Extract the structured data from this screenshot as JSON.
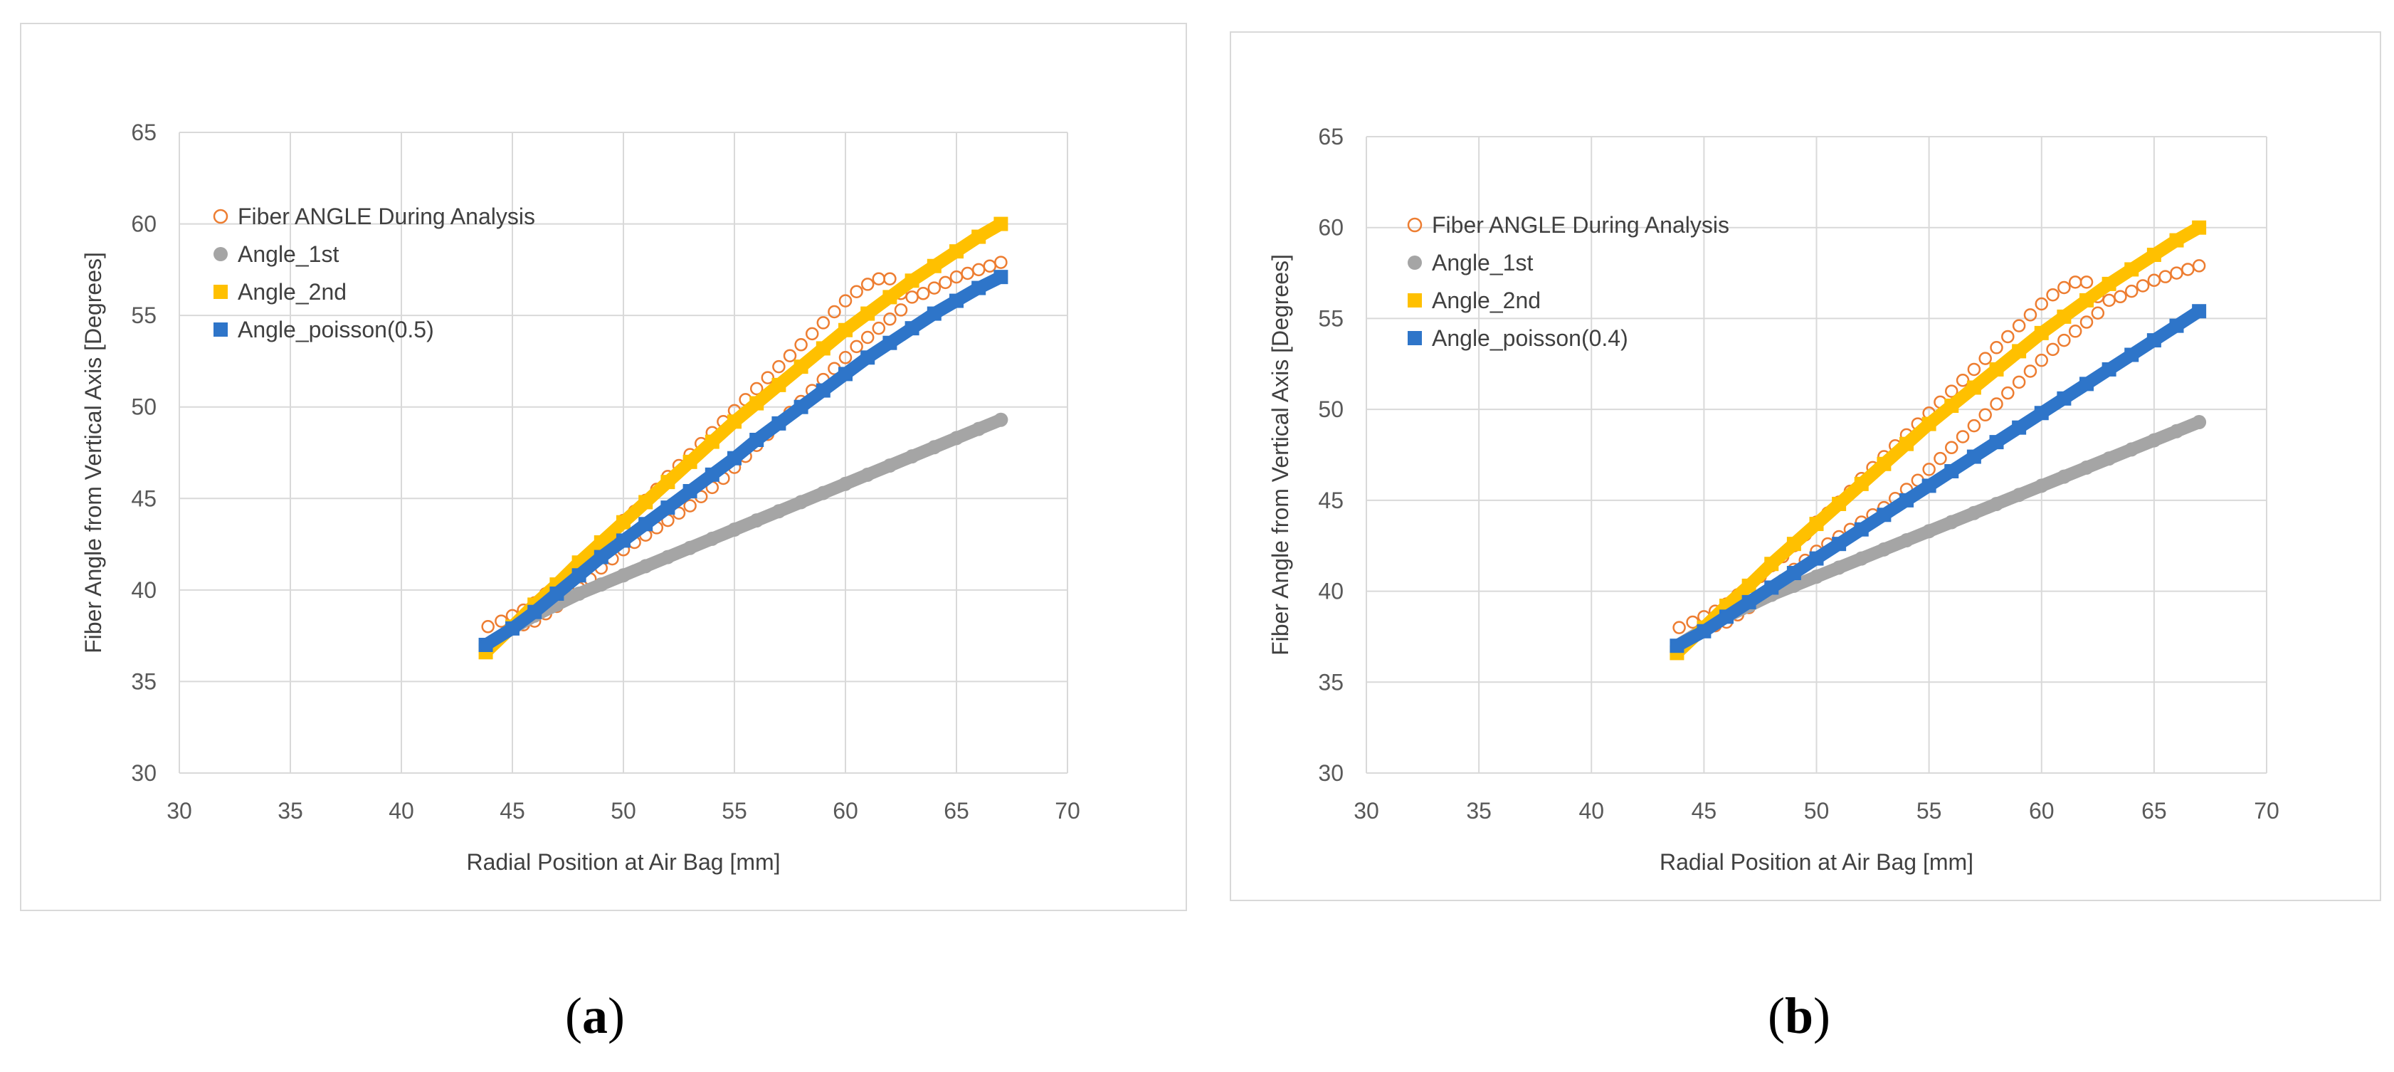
{
  "captions": {
    "a": "a",
    "b": "b"
  },
  "chart_data": [
    {
      "id": "a",
      "type": "scatter",
      "title": "",
      "xlabel": "Radial Position at Air Bag [mm]",
      "ylabel": "Fiber Angle from Vertical Axis [Degrees]",
      "xlim": [
        30,
        70
      ],
      "ylim": [
        30,
        65
      ],
      "xticks": [
        30,
        35,
        40,
        45,
        50,
        55,
        60,
        65,
        70
      ],
      "yticks": [
        30,
        35,
        40,
        45,
        50,
        55,
        60,
        65
      ],
      "grid": true,
      "legend_position": "top-left",
      "series": [
        {
          "name": "Fiber ANGLE During Analysis",
          "marker": "open-circle",
          "color": "#ED7D31",
          "x": [
            43.9,
            44.5,
            45.0,
            45.5,
            46.0,
            46.5,
            47.0,
            47.5,
            48.0,
            48.5,
            49.0,
            49.5,
            50.0,
            50.5,
            51.0,
            51.5,
            52.0,
            52.5,
            53.0,
            53.5,
            54.0,
            54.5,
            55.0,
            55.5,
            56.0,
            56.5,
            57.0,
            57.5,
            58.0,
            58.5,
            59.0,
            59.5,
            60.0,
            60.5,
            61.0,
            61.5,
            62.0,
            62.5,
            63.0,
            63.5,
            64.0,
            64.5,
            65.0,
            65.5,
            66.0,
            66.5,
            67.0,
            45.5,
            46.0,
            46.5,
            47.0,
            47.5,
            48.0,
            48.5,
            49.0,
            49.5,
            50.0,
            50.5,
            51.0,
            51.5,
            52.0,
            52.5,
            53.0,
            53.5,
            54.0,
            54.5,
            55.0,
            55.5,
            56.0,
            56.5,
            57.0,
            57.5,
            58.0,
            58.5,
            59.0,
            59.5,
            60.0,
            60.5,
            61.0,
            61.5,
            62.0,
            62.5
          ],
          "y": [
            38.0,
            38.3,
            38.6,
            38.9,
            39.3,
            39.8,
            40.3,
            40.8,
            41.4,
            41.9,
            42.5,
            43.1,
            43.8,
            44.3,
            44.9,
            45.5,
            46.2,
            46.8,
            47.4,
            48.0,
            48.6,
            49.2,
            49.8,
            50.4,
            51.0,
            51.6,
            52.2,
            52.8,
            53.4,
            54.0,
            54.6,
            55.2,
            55.8,
            56.3,
            56.7,
            57.0,
            57.0,
            56.2,
            56.0,
            56.2,
            56.5,
            56.8,
            57.1,
            57.3,
            57.5,
            57.7,
            57.9,
            38.1,
            38.3,
            38.7,
            39.1,
            39.6,
            40.1,
            40.6,
            41.2,
            41.7,
            42.2,
            42.6,
            43.0,
            43.4,
            43.8,
            44.2,
            44.6,
            45.1,
            45.6,
            46.1,
            46.7,
            47.3,
            47.9,
            48.5,
            49.1,
            49.7,
            50.3,
            50.9,
            51.5,
            52.1,
            52.7,
            53.3,
            53.8,
            54.3,
            54.8,
            55.3
          ]
        },
        {
          "name": "Angle_1st",
          "marker": "circle",
          "color": "#A5A5A5",
          "x": [
            43.8,
            45,
            46,
            47,
            48,
            49,
            50,
            51,
            52,
            53,
            54,
            55,
            56,
            57,
            58,
            59,
            60,
            61,
            62,
            63,
            64,
            65,
            66,
            67
          ],
          "y": [
            37.0,
            37.9,
            38.6,
            39.2,
            39.8,
            40.3,
            40.8,
            41.3,
            41.8,
            42.3,
            42.8,
            43.3,
            43.8,
            44.3,
            44.8,
            45.3,
            45.8,
            46.3,
            46.8,
            47.3,
            47.8,
            48.3,
            48.8,
            49.3
          ]
        },
        {
          "name": "Angle_2nd",
          "marker": "square",
          "color": "#FFC000",
          "x": [
            43.8,
            45,
            46,
            47,
            48,
            49,
            50,
            51,
            52,
            53,
            54,
            55,
            56,
            57,
            58,
            59,
            60,
            61,
            62,
            63,
            64,
            65,
            66,
            67
          ],
          "y": [
            36.6,
            38.0,
            39.2,
            40.3,
            41.5,
            42.6,
            43.7,
            44.8,
            45.9,
            47.0,
            48.1,
            49.2,
            50.2,
            51.2,
            52.2,
            53.2,
            54.2,
            55.1,
            56.0,
            56.9,
            57.7,
            58.5,
            59.3,
            60.0
          ]
        },
        {
          "name": "Angle_poisson(0.5)",
          "marker": "square",
          "color": "#2E75C9",
          "x": [
            43.8,
            45,
            46,
            47,
            48,
            49,
            50,
            51,
            52,
            53,
            54,
            55,
            56,
            57,
            58,
            59,
            60,
            61,
            62,
            63,
            64,
            65,
            66,
            67
          ],
          "y": [
            37.0,
            37.9,
            38.8,
            39.8,
            40.8,
            41.8,
            42.7,
            43.6,
            44.5,
            45.4,
            46.3,
            47.2,
            48.2,
            49.1,
            50.0,
            50.9,
            51.8,
            52.7,
            53.5,
            54.3,
            55.1,
            55.8,
            56.5,
            57.1
          ]
        }
      ]
    },
    {
      "id": "b",
      "type": "scatter",
      "title": "",
      "xlabel": "Radial Position at Air Bag [mm]",
      "ylabel": "Fiber Angle from Vertical Axis [Degrees]",
      "xlim": [
        30,
        70
      ],
      "ylim": [
        30,
        65
      ],
      "xticks": [
        30,
        35,
        40,
        45,
        50,
        55,
        60,
        65,
        70
      ],
      "yticks": [
        30,
        35,
        40,
        45,
        50,
        55,
        60,
        65
      ],
      "grid": true,
      "legend_position": "top-left",
      "series": [
        {
          "name": "Fiber ANGLE During Analysis",
          "marker": "open-circle",
          "color": "#ED7D31",
          "x": [
            43.9,
            44.5,
            45.0,
            45.5,
            46.0,
            46.5,
            47.0,
            47.5,
            48.0,
            48.5,
            49.0,
            49.5,
            50.0,
            50.5,
            51.0,
            51.5,
            52.0,
            52.5,
            53.0,
            53.5,
            54.0,
            54.5,
            55.0,
            55.5,
            56.0,
            56.5,
            57.0,
            57.5,
            58.0,
            58.5,
            59.0,
            59.5,
            60.0,
            60.5,
            61.0,
            61.5,
            62.0,
            62.5,
            63.0,
            63.5,
            64.0,
            64.5,
            65.0,
            65.5,
            66.0,
            66.5,
            67.0,
            45.5,
            46.0,
            46.5,
            47.0,
            47.5,
            48.0,
            48.5,
            49.0,
            49.5,
            50.0,
            50.5,
            51.0,
            51.5,
            52.0,
            52.5,
            53.0,
            53.5,
            54.0,
            54.5,
            55.0,
            55.5,
            56.0,
            56.5,
            57.0,
            57.5,
            58.0,
            58.5,
            59.0,
            59.5,
            60.0,
            60.5,
            61.0,
            61.5,
            62.0,
            62.5
          ],
          "y": [
            38.0,
            38.3,
            38.6,
            38.9,
            39.3,
            39.8,
            40.3,
            40.8,
            41.4,
            41.9,
            42.5,
            43.1,
            43.8,
            44.3,
            44.9,
            45.5,
            46.2,
            46.8,
            47.4,
            48.0,
            48.6,
            49.2,
            49.8,
            50.4,
            51.0,
            51.6,
            52.2,
            52.8,
            53.4,
            54.0,
            54.6,
            55.2,
            55.8,
            56.3,
            56.7,
            57.0,
            57.0,
            56.2,
            56.0,
            56.2,
            56.5,
            56.8,
            57.1,
            57.3,
            57.5,
            57.7,
            57.9,
            38.1,
            38.3,
            38.7,
            39.1,
            39.6,
            40.1,
            40.6,
            41.2,
            41.7,
            42.2,
            42.6,
            43.0,
            43.4,
            43.8,
            44.2,
            44.6,
            45.1,
            45.6,
            46.1,
            46.7,
            47.3,
            47.9,
            48.5,
            49.1,
            49.7,
            50.3,
            50.9,
            51.5,
            52.1,
            52.7,
            53.3,
            53.8,
            54.3,
            54.8,
            55.3
          ]
        },
        {
          "name": "Angle_1st",
          "marker": "circle",
          "color": "#A5A5A5",
          "x": [
            43.8,
            45,
            46,
            47,
            48,
            49,
            50,
            51,
            52,
            53,
            54,
            55,
            56,
            57,
            58,
            59,
            60,
            61,
            62,
            63,
            64,
            65,
            66,
            67
          ],
          "y": [
            37.0,
            37.9,
            38.6,
            39.2,
            39.8,
            40.3,
            40.8,
            41.3,
            41.8,
            42.3,
            42.8,
            43.3,
            43.8,
            44.3,
            44.8,
            45.3,
            45.8,
            46.3,
            46.8,
            47.3,
            47.8,
            48.3,
            48.8,
            49.3
          ]
        },
        {
          "name": "Angle_2nd",
          "marker": "square",
          "color": "#FFC000",
          "x": [
            43.8,
            45,
            46,
            47,
            48,
            49,
            50,
            51,
            52,
            53,
            54,
            55,
            56,
            57,
            58,
            59,
            60,
            61,
            62,
            63,
            64,
            65,
            66,
            67
          ],
          "y": [
            36.6,
            38.0,
            39.2,
            40.3,
            41.5,
            42.6,
            43.7,
            44.8,
            45.9,
            47.0,
            48.1,
            49.2,
            50.2,
            51.2,
            52.2,
            53.2,
            54.2,
            55.1,
            56.0,
            56.9,
            57.7,
            58.5,
            59.3,
            60.0
          ]
        },
        {
          "name": "Angle_poisson(0.4)",
          "marker": "square",
          "color": "#2E75C9",
          "x": [
            43.8,
            45,
            46,
            47,
            48,
            49,
            50,
            51,
            52,
            53,
            54,
            55,
            56,
            57,
            58,
            59,
            60,
            61,
            62,
            63,
            64,
            65,
            66,
            67
          ],
          "y": [
            37.0,
            37.8,
            38.6,
            39.4,
            40.2,
            41.0,
            41.8,
            42.6,
            43.4,
            44.2,
            45.0,
            45.8,
            46.6,
            47.4,
            48.2,
            49.0,
            49.8,
            50.6,
            51.4,
            52.2,
            53.0,
            53.8,
            54.6,
            55.4
          ]
        }
      ]
    }
  ]
}
